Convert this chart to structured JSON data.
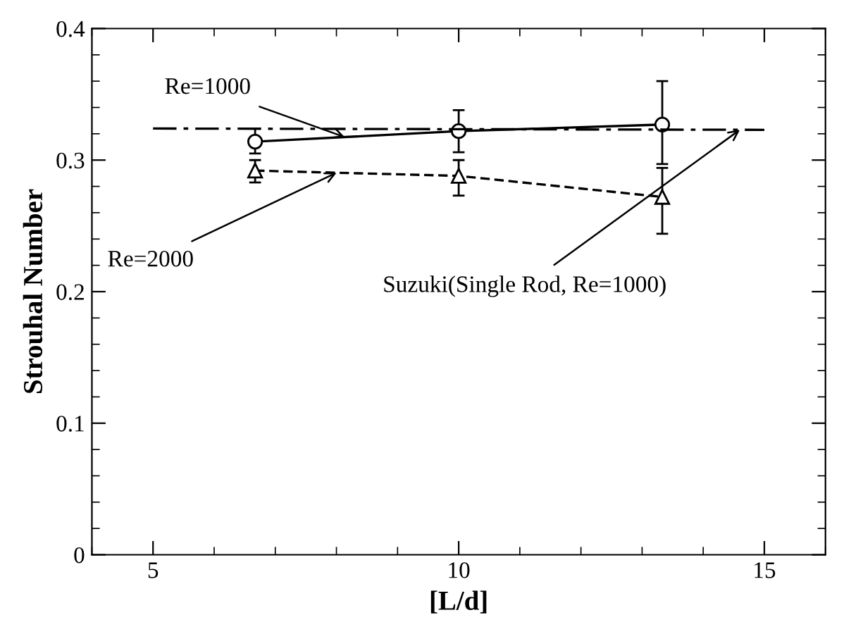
{
  "chart_data": {
    "type": "line",
    "xlabel": "[L/d]",
    "ylabel": "Strouhal Number",
    "xlim": [
      4,
      16
    ],
    "xticks": [
      5,
      10,
      15
    ],
    "ylim": [
      0,
      0.4
    ],
    "yticks": [
      0,
      0.1,
      0.2,
      0.3,
      0.4
    ],
    "grid": false,
    "legend": false,
    "series": [
      {
        "name": "Re=1000",
        "color": "#000000",
        "x": [
          6.67,
          10,
          13.33
        ],
        "values": [
          0.314,
          0.322,
          0.327
        ],
        "errors": [
          [
            0.305,
            0.324
          ],
          [
            0.306,
            0.338
          ],
          [
            0.297,
            0.36
          ]
        ],
        "marker": "circle",
        "line_style": "solid"
      },
      {
        "name": "Re=2000",
        "color": "#000000",
        "x": [
          6.67,
          10,
          13.33
        ],
        "values": [
          0.292,
          0.288,
          0.272
        ],
        "errors": [
          [
            0.283,
            0.3
          ],
          [
            0.273,
            0.3
          ],
          [
            0.244,
            0.294
          ]
        ],
        "marker": "triangle",
        "line_style": "dashed"
      },
      {
        "name": "Suzuki(Single Rod, Re=1000)",
        "color": "#000000",
        "x": [
          5,
          15
        ],
        "values": [
          0.324,
          0.323
        ],
        "marker": "none",
        "line_style": "dashdot"
      }
    ]
  }
}
